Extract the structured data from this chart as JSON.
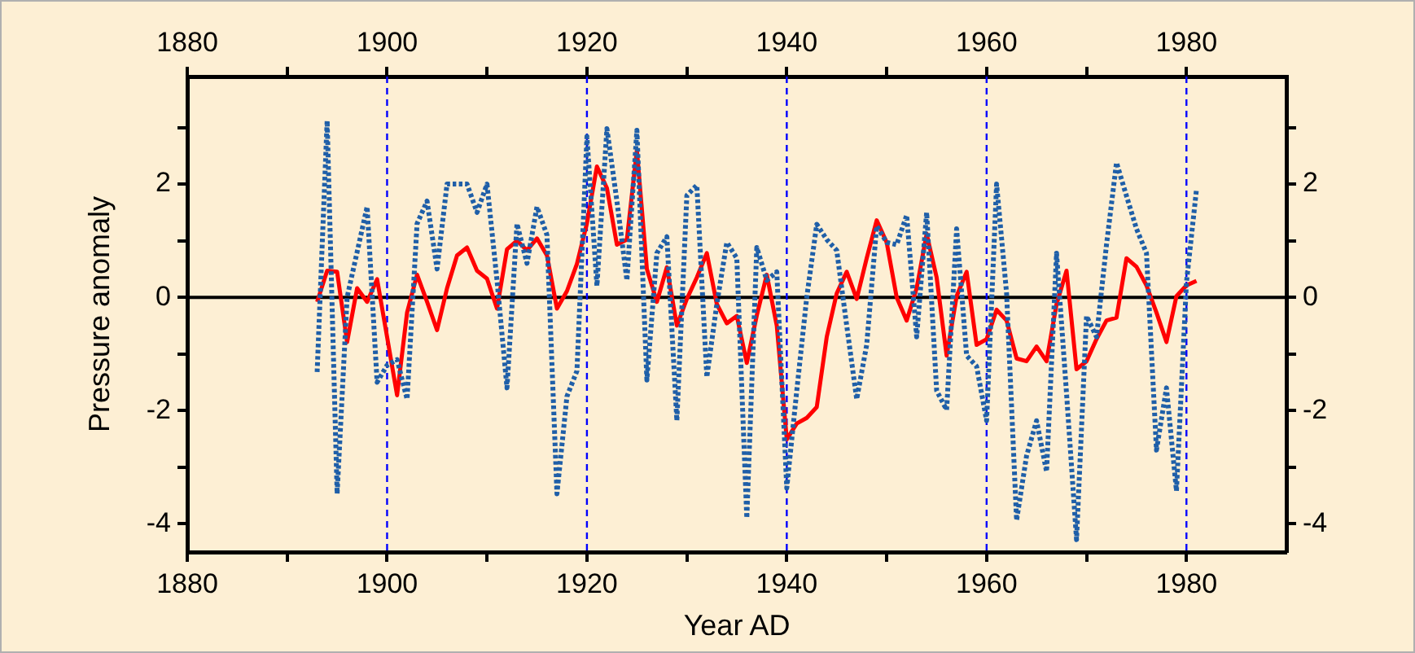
{
  "chart_data": {
    "type": "line",
    "xlabel": "Year AD",
    "ylabel": "Pressure anomaly",
    "x": [
      1893,
      1894,
      1895,
      1896,
      1897,
      1898,
      1899,
      1900,
      1901,
      1902,
      1903,
      1904,
      1905,
      1906,
      1907,
      1908,
      1909,
      1910,
      1911,
      1912,
      1913,
      1914,
      1915,
      1916,
      1917,
      1918,
      1919,
      1920,
      1921,
      1922,
      1923,
      1924,
      1925,
      1926,
      1927,
      1928,
      1929,
      1930,
      1931,
      1932,
      1933,
      1934,
      1935,
      1936,
      1937,
      1938,
      1939,
      1940,
      1941,
      1942,
      1943,
      1944,
      1945,
      1946,
      1947,
      1948,
      1949,
      1950,
      1951,
      1952,
      1953,
      1954,
      1955,
      1956,
      1957,
      1958,
      1959,
      1960,
      1961,
      1962,
      1963,
      1964,
      1965,
      1966,
      1967,
      1968,
      1969,
      1970,
      1971,
      1972,
      1973,
      1974,
      1975,
      1976,
      1977,
      1978,
      1979,
      1980,
      1981
    ],
    "series": [
      {
        "color": "#1f5fa8",
        "line_style": "dotted",
        "values": [
          -1.32,
          3.12,
          -3.47,
          0.0,
          0.8,
          1.6,
          -1.5,
          -1.2,
          -1.1,
          -1.8,
          1.3,
          1.7,
          0.5,
          2.0,
          2.0,
          2.0,
          1.5,
          2.0,
          0.3,
          -1.6,
          1.3,
          0.6,
          1.6,
          1.1,
          -3.47,
          -1.75,
          -1.3,
          2.84,
          0.2,
          2.98,
          1.7,
          0.3,
          2.95,
          -1.46,
          0.78,
          1.07,
          -2.18,
          1.8,
          1.98,
          -1.41,
          -0.12,
          0.97,
          0.69,
          -3.9,
          0.88,
          0.3,
          0.45,
          -3.37,
          -1.65,
          0.0,
          1.29,
          1.02,
          0.83,
          -0.5,
          -1.8,
          -0.84,
          1.26,
          0.97,
          0.93,
          1.45,
          -0.7,
          1.5,
          -1.65,
          -1.99,
          1.21,
          -1.03,
          -1.22,
          -2.18,
          2.0,
          0.07,
          -3.94,
          -2.8,
          -2.18,
          -3.08,
          0.78,
          -1.7,
          -4.28,
          -0.33,
          -0.7,
          0.93,
          2.38,
          1.79,
          1.21,
          0.78,
          -2.7,
          -1.6,
          -3.42,
          0.26,
          1.9
        ]
      },
      {
        "color": "#ff0000",
        "line_style": "solid",
        "values": [
          -0.08,
          0.47,
          0.45,
          -0.79,
          0.16,
          -0.08,
          0.32,
          -0.7,
          -1.73,
          -0.27,
          0.4,
          -0.08,
          -0.58,
          0.16,
          0.74,
          0.88,
          0.47,
          0.33,
          -0.2,
          0.85,
          1.0,
          0.83,
          1.04,
          0.74,
          -0.2,
          0.11,
          0.59,
          1.31,
          2.31,
          1.93,
          0.93,
          1.02,
          2.6,
          0.5,
          -0.08,
          0.53,
          -0.5,
          -0.03,
          0.35,
          0.78,
          -0.12,
          -0.46,
          -0.33,
          -1.16,
          -0.32,
          0.4,
          -0.5,
          -2.51,
          -2.23,
          -2.13,
          -1.94,
          -0.7,
          0.07,
          0.45,
          -0.03,
          0.69,
          1.36,
          0.97,
          0.0,
          -0.41,
          0.16,
          1.12,
          0.35,
          -1.03,
          0.02,
          0.45,
          -0.84,
          -0.74,
          -0.22,
          -0.41,
          -1.08,
          -1.13,
          -0.87,
          -1.13,
          -0.12,
          0.47,
          -1.27,
          -1.13,
          -0.74,
          -0.41,
          -0.36,
          0.69,
          0.54,
          0.21,
          -0.27,
          -0.79,
          0.02,
          0.21,
          0.29
        ]
      }
    ],
    "xlim": [
      1880,
      1990
    ],
    "xticks": [
      1880,
      {
        "value": 1890,
        "label": null
      },
      1900,
      {
        "value": 1910,
        "label": null
      },
      1920,
      {
        "value": 1930,
        "label": null
      },
      1940,
      {
        "value": 1950,
        "label": null
      },
      1960,
      {
        "value": 1970,
        "label": null
      },
      1980
    ],
    "x2lim": [
      1880,
      1990
    ],
    "x2ticks": [
      1880,
      {
        "value": 1890,
        "label": null
      },
      1900,
      {
        "value": 1910,
        "label": null
      },
      1920,
      {
        "value": 1930,
        "label": null
      },
      1940,
      {
        "value": 1950,
        "label": null
      },
      1960,
      {
        "value": 1970,
        "label": null
      },
      1980
    ],
    "ylim": [
      -4.5,
      3.9
    ],
    "yticks": [
      -4,
      {
        "value": -3,
        "label": null
      },
      -2,
      {
        "value": -1,
        "label": null
      },
      0,
      {
        "value": 1,
        "label": null
      },
      2,
      {
        "value": 3,
        "label": null
      }
    ],
    "y2lim": [
      -4.5,
      3.9
    ],
    "y2ticks": [
      -4,
      {
        "value": -3,
        "label": null
      },
      -2,
      {
        "value": -1,
        "label": null
      },
      0,
      {
        "value": 1,
        "label": null
      },
      2,
      {
        "value": 3,
        "label": null
      }
    ],
    "ref_lines": [
      {
        "axis": "y",
        "value": 0,
        "color": "#000000",
        "line_style": "solid"
      },
      {
        "axis": "x",
        "value": 1900,
        "color": "#0000ff",
        "line_style": "dashed"
      },
      {
        "axis": "x",
        "value": 1920,
        "color": "#0000ff",
        "line_style": "dashed"
      },
      {
        "axis": "x",
        "value": 1940,
        "color": "#0000ff",
        "line_style": "dashed"
      },
      {
        "axis": "x",
        "value": 1960,
        "color": "#0000ff",
        "line_style": "dashed"
      },
      {
        "axis": "x",
        "value": 1980,
        "color": "#0000ff",
        "line_style": "dashed"
      }
    ],
    "marker": "none",
    "grid": false,
    "legend": false
  }
}
